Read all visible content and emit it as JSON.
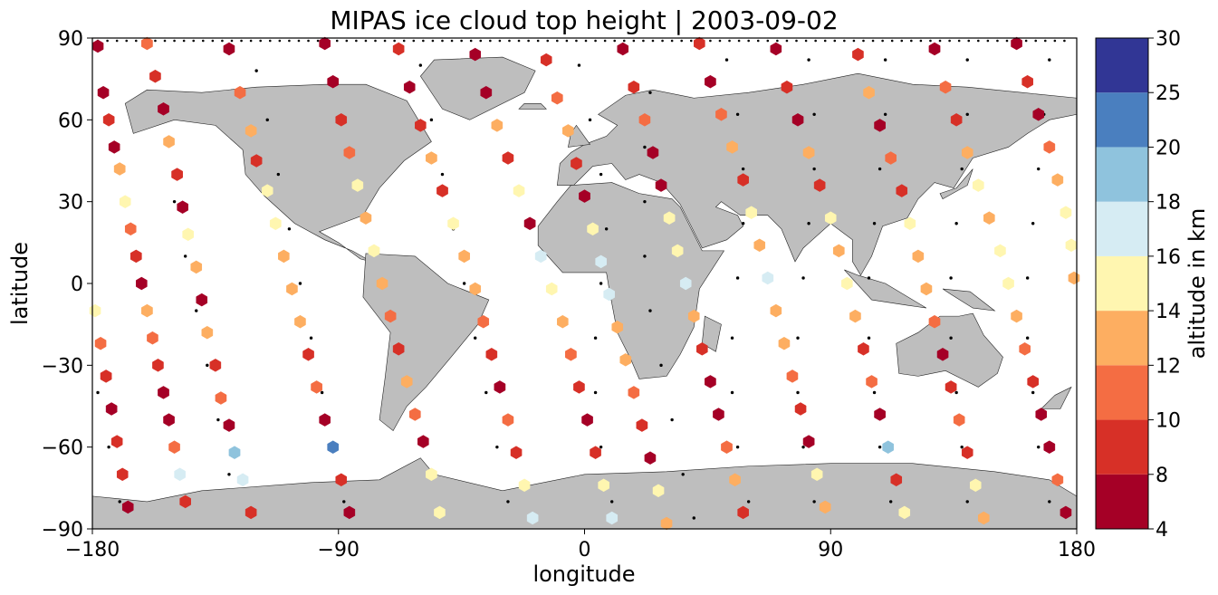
{
  "title": "MIPAS ice cloud top height | 2003-09-02",
  "map": {
    "xlabel": "longitude",
    "ylabel": "latitude",
    "xlim": [
      -180,
      180
    ],
    "ylim": [
      -90,
      90
    ],
    "xticks": [
      -180,
      -90,
      0,
      90,
      180
    ],
    "yticks": [
      -90,
      -60,
      -30,
      0,
      30,
      60,
      90
    ],
    "land_color": "#bebebe",
    "coastline_color": "#222222"
  },
  "colorbar": {
    "label": "altitude in km",
    "boundaries": [
      4,
      8,
      10,
      12,
      14,
      16,
      18,
      20,
      25,
      30
    ],
    "colors": [
      "#a50026",
      "#d73027",
      "#f46d43",
      "#fdae61",
      "#fff6b0",
      "#d6ecf3",
      "#8fc3dd",
      "#4a7fbf",
      "#313695"
    ]
  },
  "chart_data": {
    "type": "scatter",
    "title": "MIPAS ice cloud top height | 2003-09-02",
    "xlabel": "longitude",
    "ylabel": "latitude",
    "xlim": [
      -180,
      180
    ],
    "ylim": [
      -90,
      90
    ],
    "marker": "hexagon",
    "color_variable": "altitude in km",
    "color_boundaries": [
      4,
      8,
      10,
      12,
      14,
      16,
      18,
      20,
      25,
      30
    ],
    "note_points": "approximate points sampled along descending orbit tracks",
    "points": [
      [
        -178,
        87,
        6
      ],
      [
        -176,
        70,
        6
      ],
      [
        -174,
        60,
        9
      ],
      [
        -172,
        50,
        6
      ],
      [
        -170,
        42,
        13
      ],
      [
        -168,
        30,
        15
      ],
      [
        -166,
        20,
        11
      ],
      [
        -164,
        10,
        9
      ],
      [
        -162,
        0,
        6
      ],
      [
        -160,
        -10,
        13
      ],
      [
        -158,
        -20,
        11
      ],
      [
        -156,
        -30,
        9
      ],
      [
        -154,
        -40,
        6
      ],
      [
        -152,
        -50,
        6
      ],
      [
        -150,
        -60,
        11
      ],
      [
        -148,
        -70,
        17
      ],
      [
        -146,
        -80,
        9
      ],
      [
        -160,
        88,
        11
      ],
      [
        -157,
        76,
        9
      ],
      [
        -154,
        64,
        6
      ],
      [
        -152,
        52,
        13
      ],
      [
        -149,
        40,
        9
      ],
      [
        -147,
        28,
        6
      ],
      [
        -145,
        18,
        15
      ],
      [
        -142,
        6,
        13
      ],
      [
        -140,
        -6,
        6
      ],
      [
        -138,
        -18,
        12
      ],
      [
        -135,
        -30,
        9
      ],
      [
        -133,
        -42,
        11
      ],
      [
        -130,
        -52,
        6
      ],
      [
        -128,
        -62,
        19
      ],
      [
        -125,
        -72,
        17
      ],
      [
        -122,
        -84,
        9
      ],
      [
        -130,
        86,
        6
      ],
      [
        -126,
        70,
        11
      ],
      [
        -122,
        56,
        13
      ],
      [
        -120,
        45,
        9
      ],
      [
        -116,
        34,
        15
      ],
      [
        -113,
        22,
        15
      ],
      [
        -110,
        10,
        13
      ],
      [
        -107,
        -2,
        12
      ],
      [
        -104,
        -14,
        13
      ],
      [
        -101,
        -26,
        9
      ],
      [
        -98,
        -38,
        11
      ],
      [
        -95,
        -50,
        6
      ],
      [
        -92,
        -60,
        21
      ],
      [
        -89,
        -72,
        9
      ],
      [
        -86,
        -84,
        6
      ],
      [
        -95,
        88,
        6
      ],
      [
        -92,
        74,
        6
      ],
      [
        -89,
        60,
        9
      ],
      [
        -86,
        48,
        11
      ],
      [
        -83,
        36,
        15
      ],
      [
        -80,
        24,
        13
      ],
      [
        -77,
        12,
        15
      ],
      [
        -74,
        0,
        13
      ],
      [
        -71,
        -12,
        11
      ],
      [
        -68,
        -24,
        9
      ],
      [
        -65,
        -36,
        13
      ],
      [
        -62,
        -48,
        11
      ],
      [
        -59,
        -58,
        6
      ],
      [
        -56,
        -70,
        15
      ],
      [
        -53,
        -84,
        15
      ],
      [
        -68,
        86,
        9
      ],
      [
        -64,
        72,
        6
      ],
      [
        -60,
        58,
        9
      ],
      [
        -56,
        46,
        13
      ],
      [
        -52,
        34,
        9
      ],
      [
        -48,
        22,
        15
      ],
      [
        -44,
        10,
        13
      ],
      [
        -40,
        -2,
        12
      ],
      [
        -37,
        -14,
        11
      ],
      [
        -34,
        -26,
        9
      ],
      [
        -31,
        -38,
        6
      ],
      [
        -28,
        -50,
        11
      ],
      [
        -25,
        -62,
        9
      ],
      [
        -22,
        -74,
        15
      ],
      [
        -19,
        -86,
        17
      ],
      [
        -40,
        84,
        6
      ],
      [
        -36,
        70,
        6
      ],
      [
        -32,
        58,
        13
      ],
      [
        -28,
        46,
        9
      ],
      [
        -24,
        34,
        15
      ],
      [
        -20,
        22,
        6
      ],
      [
        -16,
        10,
        17
      ],
      [
        -12,
        -2,
        15
      ],
      [
        -8,
        -14,
        13
      ],
      [
        -5,
        -26,
        11
      ],
      [
        -2,
        -38,
        9
      ],
      [
        1,
        -50,
        6
      ],
      [
        4,
        -62,
        9
      ],
      [
        7,
        -74,
        15
      ],
      [
        10,
        -86,
        17
      ],
      [
        -14,
        82,
        9
      ],
      [
        -10,
        68,
        11
      ],
      [
        -6,
        56,
        13
      ],
      [
        -3,
        44,
        9
      ],
      [
        0,
        32,
        6
      ],
      [
        3,
        20,
        15
      ],
      [
        6,
        8,
        17
      ],
      [
        9,
        -4,
        17
      ],
      [
        12,
        -16,
        13
      ],
      [
        15,
        -28,
        12
      ],
      [
        18,
        -40,
        11
      ],
      [
        21,
        -52,
        9
      ],
      [
        24,
        -64,
        6
      ],
      [
        27,
        -76,
        15
      ],
      [
        30,
        -88,
        13
      ],
      [
        14,
        86,
        6
      ],
      [
        18,
        72,
        9
      ],
      [
        22,
        60,
        11
      ],
      [
        25,
        48,
        6
      ],
      [
        28,
        36,
        6
      ],
      [
        31,
        24,
        15
      ],
      [
        34,
        12,
        15
      ],
      [
        37,
        0,
        17
      ],
      [
        40,
        -12,
        13
      ],
      [
        43,
        -24,
        9
      ],
      [
        46,
        -36,
        6
      ],
      [
        49,
        -48,
        6
      ],
      [
        52,
        -60,
        11
      ],
      [
        55,
        -72,
        13
      ],
      [
        58,
        -84,
        9
      ],
      [
        42,
        88,
        9
      ],
      [
        46,
        74,
        6
      ],
      [
        50,
        62,
        11
      ],
      [
        54,
        50,
        13
      ],
      [
        58,
        38,
        9
      ],
      [
        61,
        26,
        15
      ],
      [
        64,
        14,
        13
      ],
      [
        67,
        2,
        17
      ],
      [
        70,
        -10,
        13
      ],
      [
        73,
        -22,
        12
      ],
      [
        76,
        -34,
        11
      ],
      [
        79,
        -46,
        9
      ],
      [
        82,
        -58,
        6
      ],
      [
        85,
        -70,
        15
      ],
      [
        88,
        -82,
        13
      ],
      [
        70,
        86,
        6
      ],
      [
        74,
        72,
        9
      ],
      [
        78,
        60,
        6
      ],
      [
        82,
        48,
        13
      ],
      [
        86,
        36,
        9
      ],
      [
        90,
        24,
        15
      ],
      [
        93,
        12,
        13
      ],
      [
        96,
        0,
        15
      ],
      [
        99,
        -12,
        12
      ],
      [
        102,
        -24,
        9
      ],
      [
        105,
        -36,
        11
      ],
      [
        108,
        -48,
        6
      ],
      [
        111,
        -60,
        19
      ],
      [
        114,
        -72,
        9
      ],
      [
        117,
        -84,
        15
      ],
      [
        100,
        84,
        9
      ],
      [
        104,
        70,
        13
      ],
      [
        108,
        58,
        6
      ],
      [
        112,
        46,
        11
      ],
      [
        116,
        34,
        9
      ],
      [
        119,
        22,
        15
      ],
      [
        122,
        10,
        13
      ],
      [
        125,
        -2,
        12
      ],
      [
        128,
        -14,
        11
      ],
      [
        131,
        -26,
        6
      ],
      [
        134,
        -38,
        9
      ],
      [
        137,
        -50,
        11
      ],
      [
        140,
        -62,
        9
      ],
      [
        143,
        -74,
        15
      ],
      [
        146,
        -86,
        13
      ],
      [
        128,
        86,
        6
      ],
      [
        132,
        72,
        11
      ],
      [
        136,
        60,
        9
      ],
      [
        140,
        48,
        13
      ],
      [
        144,
        36,
        15
      ],
      [
        148,
        24,
        13
      ],
      [
        152,
        12,
        15
      ],
      [
        155,
        0,
        15
      ],
      [
        158,
        -12,
        13
      ],
      [
        161,
        -24,
        11
      ],
      [
        164,
        -36,
        9
      ],
      [
        167,
        -48,
        6
      ],
      [
        170,
        -60,
        6
      ],
      [
        173,
        -72,
        11
      ],
      [
        176,
        -84,
        6
      ],
      [
        158,
        88,
        6
      ],
      [
        162,
        74,
        9
      ],
      [
        166,
        62,
        6
      ],
      [
        170,
        50,
        11
      ],
      [
        173,
        38,
        13
      ],
      [
        176,
        26,
        15
      ],
      [
        178,
        14,
        15
      ],
      [
        179,
        2,
        13
      ],
      [
        -179,
        -10,
        15
      ],
      [
        -177,
        -22,
        11
      ],
      [
        -175,
        -34,
        9
      ],
      [
        -173,
        -46,
        6
      ],
      [
        -171,
        -58,
        9
      ],
      [
        -169,
        -70,
        9
      ],
      [
        -167,
        -82,
        6
      ]
    ],
    "ground_track_points": [
      [
        -178,
        -40
      ],
      [
        -174,
        -60
      ],
      [
        -170,
        -80
      ],
      [
        -150,
        30
      ],
      [
        -146,
        10
      ],
      [
        -142,
        -10
      ],
      [
        -138,
        -30
      ],
      [
        -134,
        -50
      ],
      [
        -130,
        -70
      ],
      [
        -120,
        78
      ],
      [
        -116,
        60
      ],
      [
        -112,
        40
      ],
      [
        -108,
        20
      ],
      [
        -104,
        0
      ],
      [
        -100,
        -20
      ],
      [
        -96,
        -40
      ],
      [
        -92,
        -60
      ],
      [
        -88,
        -80
      ],
      [
        -60,
        80
      ],
      [
        -56,
        60
      ],
      [
        -52,
        40
      ],
      [
        -48,
        20
      ],
      [
        -44,
        0
      ],
      [
        -40,
        -20
      ],
      [
        -36,
        -40
      ],
      [
        -32,
        -60
      ],
      [
        -28,
        -80
      ],
      [
        -2,
        80
      ],
      [
        2,
        60
      ],
      [
        6,
        40
      ],
      [
        8,
        20
      ],
      [
        6,
        0
      ],
      [
        4,
        -20
      ],
      [
        4,
        -40
      ],
      [
        6,
        -60
      ],
      [
        10,
        -80
      ],
      [
        24,
        70
      ],
      [
        22,
        50
      ],
      [
        22,
        30
      ],
      [
        22,
        10
      ],
      [
        24,
        -10
      ],
      [
        28,
        -30
      ],
      [
        32,
        -50
      ],
      [
        36,
        -70
      ],
      [
        40,
        -86
      ],
      [
        52,
        82
      ],
      [
        56,
        62
      ],
      [
        58,
        42
      ],
      [
        58,
        22
      ],
      [
        56,
        2
      ],
      [
        54,
        -20
      ],
      [
        54,
        -40
      ],
      [
        56,
        -60
      ],
      [
        60,
        -80
      ],
      [
        82,
        82
      ],
      [
        84,
        62
      ],
      [
        84,
        42
      ],
      [
        82,
        22
      ],
      [
        80,
        2
      ],
      [
        78,
        -20
      ],
      [
        78,
        -40
      ],
      [
        80,
        -60
      ],
      [
        84,
        -80
      ],
      [
        110,
        82
      ],
      [
        110,
        62
      ],
      [
        108,
        42
      ],
      [
        106,
        22
      ],
      [
        104,
        2
      ],
      [
        104,
        -20
      ],
      [
        106,
        -40
      ],
      [
        108,
        -60
      ],
      [
        112,
        -80
      ],
      [
        140,
        82
      ],
      [
        140,
        62
      ],
      [
        138,
        42
      ],
      [
        136,
        22
      ],
      [
        134,
        2
      ],
      [
        134,
        -20
      ],
      [
        136,
        -40
      ],
      [
        138,
        -60
      ],
      [
        140,
        -80
      ],
      [
        170,
        82
      ],
      [
        168,
        62
      ],
      [
        166,
        42
      ],
      [
        164,
        22
      ],
      [
        162,
        2
      ],
      [
        162,
        -20
      ],
      [
        164,
        -40
      ],
      [
        166,
        -60
      ],
      [
        170,
        -80
      ]
    ]
  }
}
